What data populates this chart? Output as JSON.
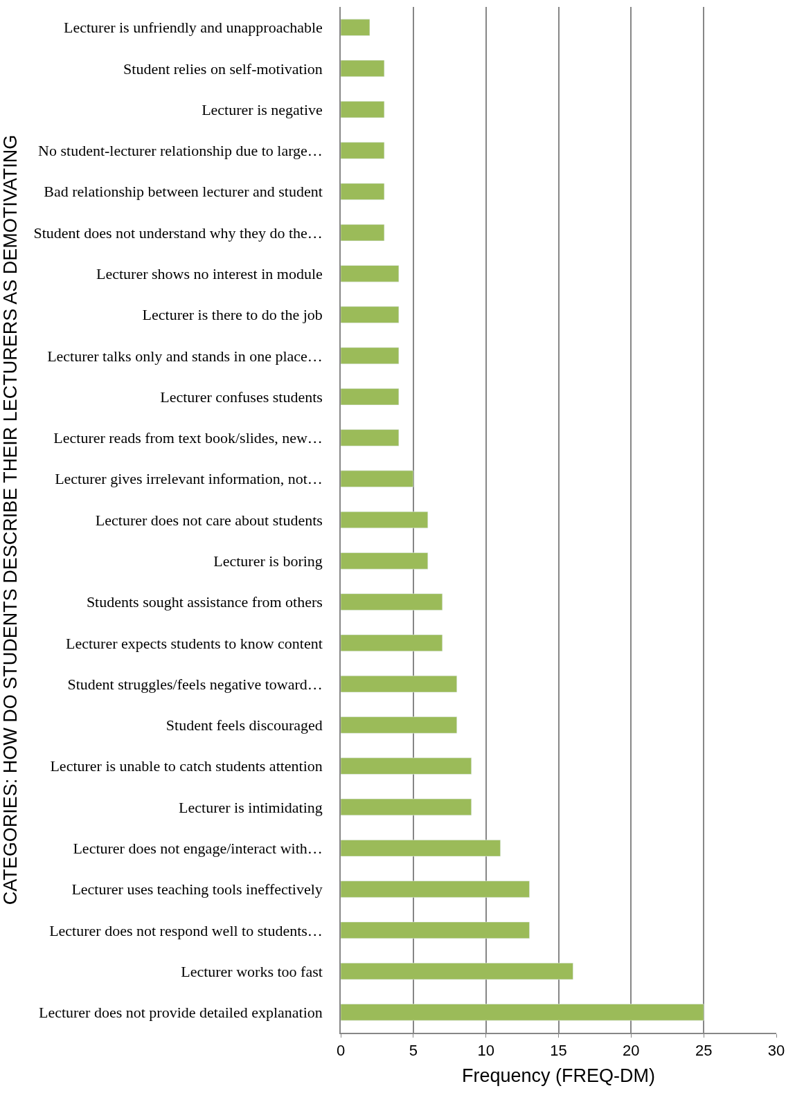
{
  "chart_data": {
    "type": "bar",
    "orientation": "horizontal",
    "ylabel": "CATEGORIES: HOW DO STUDENTS DESCRIBE THEIR LECTURERS AS DEMOTIVATING",
    "xlabel": "Frequency (FREQ-DM)",
    "categories": [
      "Lecturer is unfriendly and unapproachable",
      "Student relies on self-motivation",
      "Lecturer is negative",
      "No student-lecturer relationship due to large…",
      "Bad relationship between lecturer and student",
      "Student does not understand why they do the…",
      "Lecturer shows no interest in module",
      "Lecturer is there to do the job",
      "Lecturer talks only and stands in one place…",
      "Lecturer confuses students",
      "Lecturer reads from text book/slides, new…",
      "Lecturer gives irrelevant information, not…",
      "Lecturer does not care about students",
      "Lecturer is boring",
      "Students sought assistance from others",
      "Lecturer expects students to know content",
      "Student struggles/feels negative toward…",
      "Student feels discouraged",
      "Lecturer is unable to catch students attention",
      "Lecturer is intimidating",
      "Lecturer does not engage/interact with…",
      "Lecturer uses teaching tools ineffectively",
      "Lecturer does not respond well to students…",
      "Lecturer works too fast",
      "Lecturer does not provide detailed explanation"
    ],
    "values": [
      2,
      3,
      3,
      3,
      3,
      3,
      4,
      4,
      4,
      4,
      4,
      5,
      6,
      6,
      7,
      7,
      8,
      8,
      9,
      9,
      11,
      13,
      13,
      16,
      25
    ],
    "color": "#9bbb59",
    "xlim": [
      0,
      30
    ],
    "xticks": [
      0,
      5,
      10,
      15,
      20,
      25,
      30
    ],
    "grid": "x",
    "legend": false
  }
}
